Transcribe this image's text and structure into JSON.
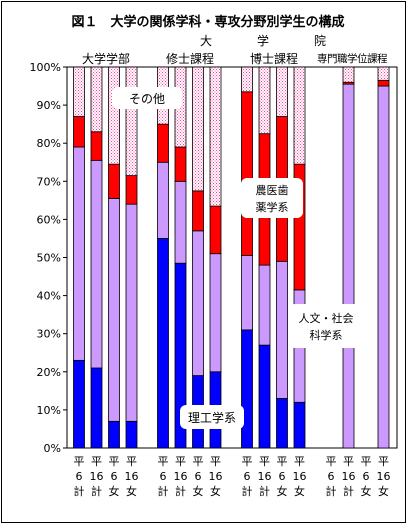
{
  "chart_data": {
    "type": "bar",
    "stacked": true,
    "title": "図１　大学の関係学科・専攻分野別学生の構成",
    "y_ticks": [
      "0%",
      "10%",
      "20%",
      "30%",
      "40%",
      "50%",
      "60%",
      "70%",
      "80%",
      "90%",
      "100%"
    ],
    "ylim": [
      0,
      100
    ],
    "grid": false,
    "daigakuin_label": [
      "大",
      "学",
      "院"
    ],
    "groups": [
      {
        "name": "大学学部",
        "categories": [
          [
            "平",
            "6",
            "計"
          ],
          [
            "平",
            "16",
            "計"
          ],
          [
            "平",
            "6",
            "女"
          ],
          [
            "平",
            "16",
            "女"
          ]
        ]
      },
      {
        "name": "修士課程",
        "categories": [
          [
            "平",
            "6",
            "計"
          ],
          [
            "平",
            "16",
            "計"
          ],
          [
            "平",
            "6",
            "女"
          ],
          [
            "平",
            "16",
            "女"
          ]
        ]
      },
      {
        "name": "博士課程",
        "categories": [
          [
            "平",
            "6",
            "計"
          ],
          [
            "平",
            "16",
            "計"
          ],
          [
            "平",
            "6",
            "女"
          ],
          [
            "平",
            "16",
            "女"
          ]
        ]
      },
      {
        "name": "専門職学位課程",
        "categories": [
          [
            "平",
            "6",
            "計"
          ],
          [
            "平",
            "16",
            "計"
          ],
          [
            "平",
            "6",
            "女"
          ],
          [
            "平",
            "16",
            "女"
          ]
        ]
      }
    ],
    "series": [
      {
        "name": "理工学系",
        "color": "#0000ff",
        "values": [
          23,
          21,
          7,
          7,
          55,
          48.5,
          19,
          20,
          31,
          27,
          13,
          12,
          0,
          0,
          0,
          0
        ]
      },
      {
        "name": "人文・社会科学系",
        "color": "#cc99ff",
        "values": [
          56,
          54.5,
          58.5,
          57,
          20,
          21.5,
          38,
          31,
          19.5,
          21,
          36,
          29.5,
          0,
          95.5,
          0,
          95
        ]
      },
      {
        "name": "農医歯薬学系",
        "color": "#ff0000",
        "values": [
          8,
          7.5,
          9,
          7.5,
          10,
          9,
          10.5,
          12.5,
          43,
          34.5,
          38,
          33,
          0,
          0.5,
          0,
          1.5
        ]
      },
      {
        "name": "その他",
        "color": "#ff99cc",
        "values": [
          13,
          17,
          25.5,
          28.5,
          15,
          21,
          32.5,
          36.5,
          6.5,
          17.5,
          13,
          25.5,
          0,
          4,
          0,
          3.5
        ]
      }
    ]
  }
}
